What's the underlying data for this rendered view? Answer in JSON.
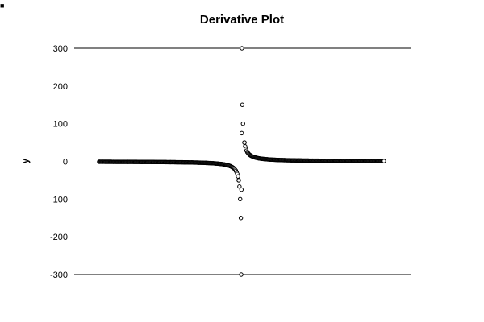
{
  "corner_mark": "■",
  "chart_data": {
    "type": "scatter",
    "title": "Derivative Plot",
    "xlabel": "",
    "ylabel": "y",
    "ylim": [
      -300,
      300
    ],
    "yticks": [
      300,
      200,
      100,
      0,
      -100,
      -200,
      -300
    ],
    "ytick_labels": [
      "300",
      "200",
      "100",
      "0",
      "-100",
      "-200",
      "-300"
    ],
    "xlim": [
      -1,
      1
    ],
    "x_axis_visible": false,
    "grid": "major-y-at-extremes",
    "legend": "none",
    "marker": "open-circle",
    "series": [
      {
        "x": [
          -0.02,
          -0.04,
          -0.06,
          -0.08,
          -0.1,
          -0.12,
          -0.14,
          -0.16,
          -0.18,
          -0.2,
          -0.25,
          -0.3,
          -0.35,
          -0.4,
          -0.5,
          -0.6,
          -0.7,
          -0.8,
          -0.9,
          -1.0,
          0.02,
          0.04,
          0.06,
          0.08,
          0.1,
          0.12,
          0.14,
          0.16,
          0.18,
          0.2,
          0.25,
          0.3,
          0.35,
          0.4,
          0.5,
          0.6,
          0.7,
          0.8,
          0.9,
          1.0,
          -0.01,
          0.01,
          -0.005,
          0.005,
          -0.0025,
          0.0025,
          -0.001,
          0.001
        ],
        "y": [
          -50,
          -25,
          -16.7,
          -12.5,
          -10,
          -8.3,
          -7.1,
          -6.3,
          -5.6,
          -5,
          -4,
          -3.3,
          -2.9,
          -2.5,
          -2,
          -1.7,
          -1.4,
          -1.3,
          -1.1,
          -1,
          50,
          25,
          16.7,
          12.5,
          10,
          8.3,
          7.1,
          6.3,
          5.6,
          5,
          4,
          3.3,
          2.9,
          2.5,
          2,
          1.7,
          1.4,
          1.3,
          1.1,
          1,
          -100,
          100,
          -150,
          150,
          -300,
          300,
          -75,
          75
        ]
      }
    ]
  }
}
